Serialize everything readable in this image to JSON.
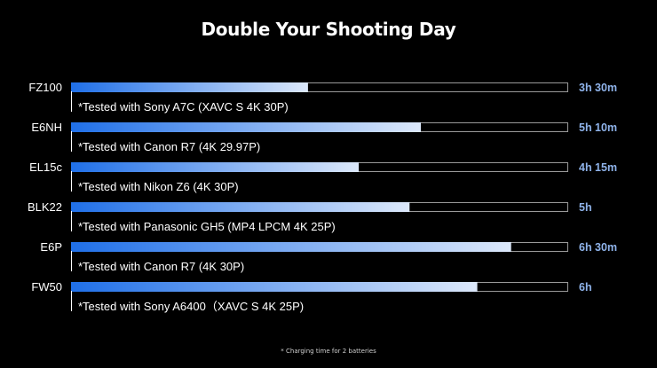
{
  "title": "Double Your Shooting Day",
  "footnote": "* Charging time for 2 batteries",
  "colors": {
    "background": "#000000",
    "bar_start": "#1f6fe8",
    "bar_end": "#dce8fa",
    "track_border": "#9a9a9a",
    "value_text": "#8fb3ea",
    "label_text": "#ffffff"
  },
  "chart_data": {
    "type": "bar",
    "orientation": "horizontal",
    "xlim": [
      0,
      7.33
    ],
    "grid": false,
    "categories": [
      "FZ100",
      "E6NH",
      "EL15c",
      "BLK22",
      "E6P",
      "FW50"
    ],
    "values": [
      3.5,
      5.1667,
      4.25,
      5,
      6.5,
      6
    ],
    "value_labels": [
      "3h 30m",
      "5h 10m",
      "4h 15m",
      "5h",
      "6h 30m",
      "6h"
    ],
    "notes": [
      "*Tested with Sony A7C (XAVC S 4K 30P)",
      "*Tested with Canon R7 (4K 29.97P)",
      "*Tested with Nikon Z6 (4K 30P)",
      "*Tested with Panasonic GH5 (MP4 LPCM 4K 25P)",
      "*Tested with Canon R7 (4K 30P)",
      "*Tested with Sony A6400（XAVC S 4K 25P)"
    ]
  }
}
